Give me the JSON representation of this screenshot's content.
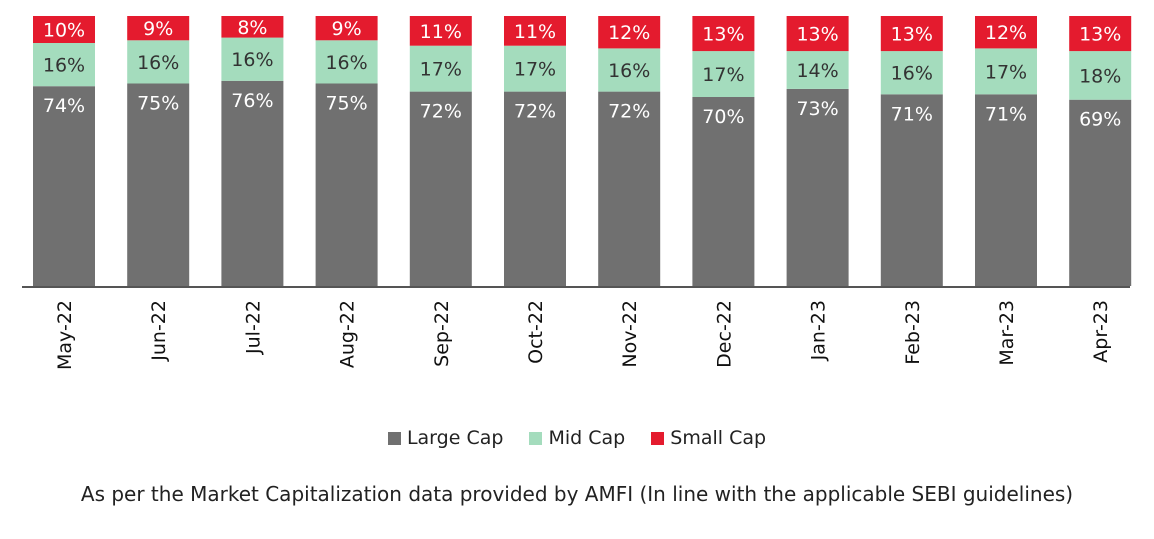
{
  "chart_data": {
    "type": "bar",
    "stacked": true,
    "categories": [
      "May-22",
      "Jun-22",
      "Jul-22",
      "Aug-22",
      "Sep-22",
      "Oct-22",
      "Nov-22",
      "Dec-22",
      "Jan-23",
      "Feb-23",
      "Mar-23",
      "Apr-23"
    ],
    "series": [
      {
        "name": "Large Cap",
        "color": "#707070",
        "values": [
          74,
          75,
          76,
          75,
          72,
          72,
          72,
          70,
          73,
          71,
          71,
          69
        ]
      },
      {
        "name": "Mid Cap",
        "color": "#a4dcbd",
        "values": [
          16,
          16,
          16,
          16,
          17,
          17,
          16,
          17,
          14,
          16,
          17,
          18
        ]
      },
      {
        "name": "Small Cap",
        "color": "#e41b2e",
        "values": [
          10,
          9,
          8,
          9,
          11,
          11,
          12,
          13,
          13,
          13,
          12,
          13
        ]
      }
    ],
    "value_suffix": "%",
    "legend_position": "bottom",
    "grid": false
  },
  "footnote": "As per the Market Capitalization data provided by AMFI (In line with the applicable SEBI guidelines)"
}
